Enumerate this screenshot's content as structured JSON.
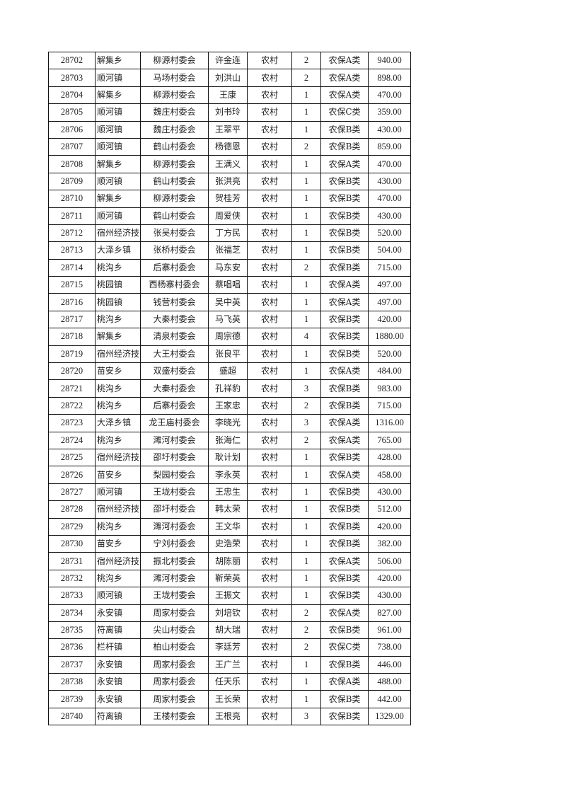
{
  "rows": [
    [
      "28702",
      "解集乡",
      "柳源村委会",
      "许金连",
      "农村",
      "2",
      "农保A类",
      "940.00"
    ],
    [
      "28703",
      "顺河镇",
      "马场村委会",
      "刘洪山",
      "农村",
      "2",
      "农保A类",
      "898.00"
    ],
    [
      "28704",
      "解集乡",
      "柳源村委会",
      "王康",
      "农村",
      "1",
      "农保A类",
      "470.00"
    ],
    [
      "28705",
      "顺河镇",
      "魏庄村委会",
      "刘书玲",
      "农村",
      "1",
      "农保C类",
      "359.00"
    ],
    [
      "28706",
      "顺河镇",
      "魏庄村委会",
      "王翠平",
      "农村",
      "1",
      "农保B类",
      "430.00"
    ],
    [
      "28707",
      "顺河镇",
      "鹤山村委会",
      "杨德恩",
      "农村",
      "2",
      "农保B类",
      "859.00"
    ],
    [
      "28708",
      "解集乡",
      "柳源村委会",
      "王满义",
      "农村",
      "1",
      "农保A类",
      "470.00"
    ],
    [
      "28709",
      "顺河镇",
      "鹤山村委会",
      "张洪亮",
      "农村",
      "1",
      "农保B类",
      "430.00"
    ],
    [
      "28710",
      "解集乡",
      "柳源村委会",
      "贺桂芳",
      "农村",
      "1",
      "农保B类",
      "470.00"
    ],
    [
      "28711",
      "顺河镇",
      "鹤山村委会",
      "周爱侠",
      "农村",
      "1",
      "农保B类",
      "430.00"
    ],
    [
      "28712",
      "宿州经济技",
      "张吴村委会",
      "丁方民",
      "农村",
      "1",
      "农保B类",
      "520.00"
    ],
    [
      "28713",
      "大泽乡镇",
      "张桥村委会",
      "张福芝",
      "农村",
      "1",
      "农保B类",
      "504.00"
    ],
    [
      "28714",
      "桃沟乡",
      "后寨村委会",
      "马东安",
      "农村",
      "2",
      "农保B类",
      "715.00"
    ],
    [
      "28715",
      "桃园镇",
      "西杨寨村委会",
      "蔡唱唱",
      "农村",
      "1",
      "农保A类",
      "497.00"
    ],
    [
      "28716",
      "桃园镇",
      "钱营村委会",
      "吴中英",
      "农村",
      "1",
      "农保A类",
      "497.00"
    ],
    [
      "28717",
      "桃沟乡",
      "大秦村委会",
      "马飞英",
      "农村",
      "1",
      "农保B类",
      "420.00"
    ],
    [
      "28718",
      "解集乡",
      "清泉村委会",
      "周宗德",
      "农村",
      "4",
      "农保B类",
      "1880.00"
    ],
    [
      "28719",
      "宿州经济技",
      "大王村委会",
      "张良平",
      "农村",
      "1",
      "农保B类",
      "520.00"
    ],
    [
      "28720",
      "苗安乡",
      "双盛村委会",
      "盛超",
      "农村",
      "1",
      "农保A类",
      "484.00"
    ],
    [
      "28721",
      "桃沟乡",
      "大秦村委会",
      "孔祥豹",
      "农村",
      "3",
      "农保B类",
      "983.00"
    ],
    [
      "28722",
      "桃沟乡",
      "后寨村委会",
      "王家忠",
      "农村",
      "2",
      "农保B类",
      "715.00"
    ],
    [
      "28723",
      "大泽乡镇",
      "龙王庙村委会",
      "李晓光",
      "农村",
      "3",
      "农保A类",
      "1316.00"
    ],
    [
      "28724",
      "桃沟乡",
      "濉河村委会",
      "张海仁",
      "农村",
      "2",
      "农保A类",
      "765.00"
    ],
    [
      "28725",
      "宿州经济技",
      "邵圩村委会",
      "耿计划",
      "农村",
      "1",
      "农保B类",
      "428.00"
    ],
    [
      "28726",
      "苗安乡",
      "梨园村委会",
      "李永英",
      "农村",
      "1",
      "农保A类",
      "458.00"
    ],
    [
      "28727",
      "顺河镇",
      "王垅村委会",
      "王忠生",
      "农村",
      "1",
      "农保B类",
      "430.00"
    ],
    [
      "28728",
      "宿州经济技",
      "邵圩村委会",
      "韩太荣",
      "农村",
      "1",
      "农保B类",
      "512.00"
    ],
    [
      "28729",
      "桃沟乡",
      "濉河村委会",
      "王文华",
      "农村",
      "1",
      "农保B类",
      "420.00"
    ],
    [
      "28730",
      "苗安乡",
      "宁刘村委会",
      "史浩荣",
      "农村",
      "1",
      "农保B类",
      "382.00"
    ],
    [
      "28731",
      "宿州经济技",
      "振北村委会",
      "胡陈丽",
      "农村",
      "1",
      "农保A类",
      "506.00"
    ],
    [
      "28732",
      "桃沟乡",
      "濉河村委会",
      "靳荣英",
      "农村",
      "1",
      "农保B类",
      "420.00"
    ],
    [
      "28733",
      "顺河镇",
      "王垅村委会",
      "王振文",
      "农村",
      "1",
      "农保B类",
      "430.00"
    ],
    [
      "28734",
      "永安镇",
      "周家村委会",
      "刘培钦",
      "农村",
      "2",
      "农保A类",
      "827.00"
    ],
    [
      "28735",
      "符离镇",
      "尖山村委会",
      "胡大瑞",
      "农村",
      "2",
      "农保B类",
      "961.00"
    ],
    [
      "28736",
      "栏杆镇",
      "柏山村委会",
      "李廷芳",
      "农村",
      "2",
      "农保C类",
      "738.00"
    ],
    [
      "28737",
      "永安镇",
      "周家村委会",
      "王广兰",
      "农村",
      "1",
      "农保B类",
      "446.00"
    ],
    [
      "28738",
      "永安镇",
      "周家村委会",
      "任天乐",
      "农村",
      "1",
      "农保A类",
      "488.00"
    ],
    [
      "28739",
      "永安镇",
      "周家村委会",
      "王长荣",
      "农村",
      "1",
      "农保B类",
      "442.00"
    ],
    [
      "28740",
      "符离镇",
      "王楼村委会",
      "王根亮",
      "农村",
      "3",
      "农保B类",
      "1329.00"
    ]
  ]
}
